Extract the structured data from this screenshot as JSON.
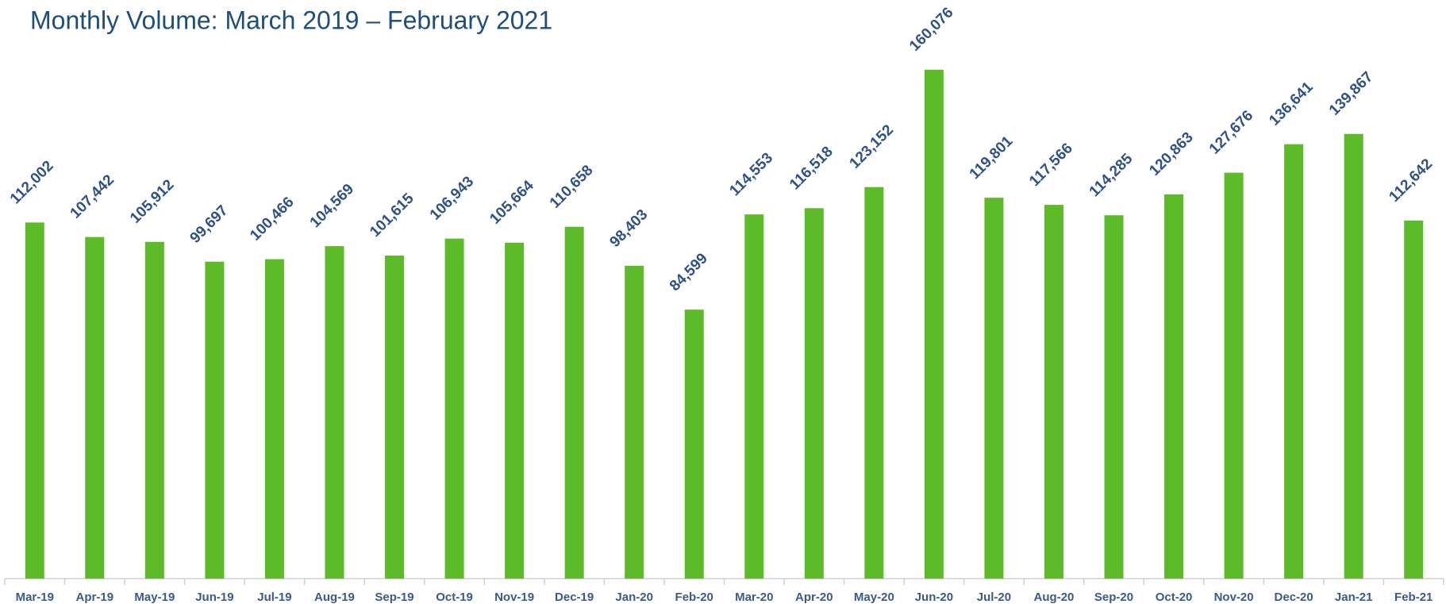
{
  "chart_data": {
    "type": "bar",
    "title": "Monthly Volume: March 2019 – February 2021",
    "categories": [
      "Mar-19",
      "Apr-19",
      "May-19",
      "Jun-19",
      "Jul-19",
      "Aug-19",
      "Sep-19",
      "Oct-19",
      "Nov-19",
      "Dec-19",
      "Jan-20",
      "Feb-20",
      "Mar-20",
      "Apr-20",
      "May-20",
      "Jun-20",
      "Jul-20",
      "Aug-20",
      "Sep-20",
      "Oct-20",
      "Nov-20",
      "Dec-20",
      "Jan-21",
      "Feb-21"
    ],
    "values": [
      112002,
      107442,
      105912,
      99697,
      100466,
      104569,
      101615,
      106943,
      105664,
      110658,
      98403,
      84599,
      114553,
      116518,
      123152,
      160076,
      119801,
      117566,
      114285,
      120863,
      127676,
      136641,
      139867,
      112642
    ],
    "value_labels": [
      "112,002",
      "107,442",
      "105,912",
      "99,697",
      "100,466",
      "104,569",
      "101,615",
      "106,943",
      "105,664",
      "110,658",
      "98,403",
      "84,599",
      "114,553",
      "116,518",
      "123,152",
      "160,076",
      "119,801",
      "117,566",
      "114,285",
      "120,863",
      "127,676",
      "136,641",
      "139,867",
      "112,642"
    ],
    "color": "#5dbb2a",
    "ylim": [
      0,
      180000
    ]
  }
}
